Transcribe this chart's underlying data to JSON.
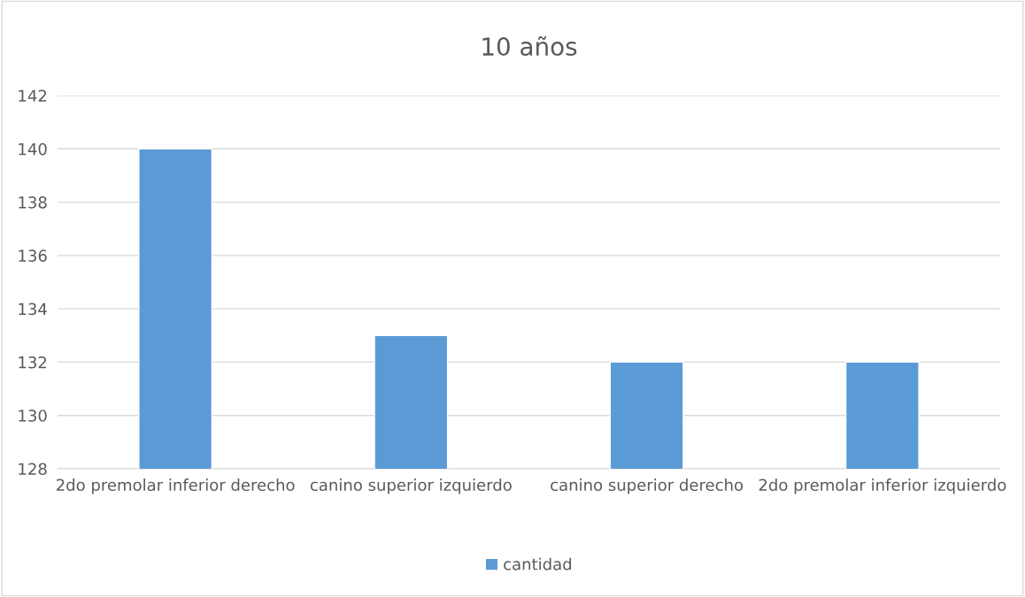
{
  "chart_data": {
    "type": "bar",
    "title": "10 años",
    "categories": [
      "2do premolar inferior derecho",
      "canino superior izquierdo",
      "canino superior derecho",
      "2do premolar inferior izquierdo"
    ],
    "series": [
      {
        "name": "cantidad",
        "color": "#5b9bd5",
        "values": [
          140,
          133,
          132,
          132
        ]
      }
    ],
    "ylim": [
      128,
      142
    ],
    "yticks": [
      128,
      130,
      132,
      134,
      136,
      138,
      140,
      142
    ],
    "grid": "y",
    "legend": "bottom"
  }
}
